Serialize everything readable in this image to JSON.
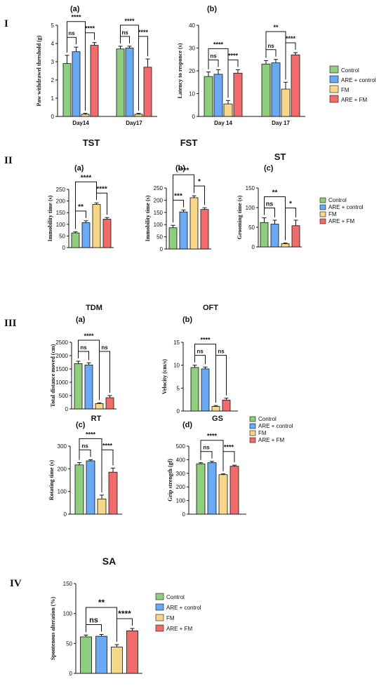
{
  "colors": {
    "Control": "#8fce7f",
    "ARE + control": "#6aaaf5",
    "FM": "#f7d88a",
    "ARE + FM": "#f26b6b"
  },
  "section_labels": [
    "I",
    "II",
    "III",
    "IV"
  ],
  "legends": {
    "entries": [
      "Control",
      "ARE + control",
      "FM",
      "ARE + FM"
    ]
  },
  "chart_data": [
    {
      "id": "I-a",
      "type": "bar",
      "panel": "(a)",
      "title": "",
      "ylabel": "Paw withdrawel threshold (g)",
      "ylim": [
        0,
        5
      ],
      "yticks": [
        0,
        1,
        2,
        3,
        4,
        5
      ],
      "categories": [
        "Day14",
        "Day17"
      ],
      "series": [
        {
          "name": "Control",
          "values": [
            2.9,
            3.7
          ],
          "err": [
            0.45,
            0.15
          ]
        },
        {
          "name": "ARE + control",
          "values": [
            3.55,
            3.75
          ],
          "err": [
            0.25,
            0.1
          ]
        },
        {
          "name": "FM",
          "values": [
            0.12,
            0.12
          ],
          "err": [
            0.05,
            0.05
          ]
        },
        {
          "name": "ARE + FM",
          "values": [
            3.9,
            2.7
          ],
          "err": [
            0.15,
            0.45
          ]
        }
      ],
      "sig": [
        {
          "g": 0,
          "a": 0,
          "b": 2,
          "label": "****",
          "lvl": 2
        },
        {
          "g": 0,
          "a": 0,
          "b": 1,
          "label": "ns",
          "lvl": 1
        },
        {
          "g": 0,
          "a": 2,
          "b": 3,
          "label": "****",
          "lvl": 1
        },
        {
          "g": 1,
          "a": 0,
          "b": 2,
          "label": "****",
          "lvl": 2
        },
        {
          "g": 1,
          "a": 0,
          "b": 1,
          "label": "ns",
          "lvl": 1
        },
        {
          "g": 1,
          "a": 2,
          "b": 3,
          "label": "****",
          "lvl": 1
        }
      ]
    },
    {
      "id": "I-b",
      "type": "bar",
      "panel": "(b)",
      "title": "",
      "ylabel": "Latency to responce (s)",
      "ylim": [
        0,
        40
      ],
      "yticks": [
        0,
        10,
        20,
        30,
        40
      ],
      "categories": [
        "Day 14",
        "Day 17"
      ],
      "series": [
        {
          "name": "Control",
          "values": [
            17.5,
            23
          ],
          "err": [
            2,
            1.5
          ]
        },
        {
          "name": "ARE + control",
          "values": [
            18.5,
            23.5
          ],
          "err": [
            2,
            1.5
          ]
        },
        {
          "name": "FM",
          "values": [
            5.5,
            12
          ],
          "err": [
            1.5,
            3
          ]
        },
        {
          "name": "ARE + FM",
          "values": [
            19,
            27
          ],
          "err": [
            1.5,
            1
          ]
        }
      ],
      "sig": [
        {
          "g": 0,
          "a": 0,
          "b": 2,
          "label": "****",
          "lvl": 2
        },
        {
          "g": 0,
          "a": 0,
          "b": 1,
          "label": "ns",
          "lvl": 1
        },
        {
          "g": 0,
          "a": 2,
          "b": 3,
          "label": "****",
          "lvl": 1
        },
        {
          "g": 1,
          "a": 0,
          "b": 2,
          "label": "**",
          "lvl": 2
        },
        {
          "g": 1,
          "a": 0,
          "b": 1,
          "label": "ns",
          "lvl": 1
        },
        {
          "g": 1,
          "a": 2,
          "b": 3,
          "label": "****",
          "lvl": 1
        }
      ]
    },
    {
      "id": "II-a",
      "type": "bar",
      "panel": "(a)",
      "title": "TST",
      "ylabel": "Immobility time (s)",
      "ylim": [
        0,
        250
      ],
      "yticks": [
        0,
        50,
        100,
        150,
        200,
        250
      ],
      "categories": [
        ""
      ],
      "series": [
        {
          "name": "Control",
          "values": [
            63
          ],
          "err": [
            5
          ]
        },
        {
          "name": "ARE + control",
          "values": [
            107
          ],
          "err": [
            8
          ]
        },
        {
          "name": "FM",
          "values": [
            185
          ],
          "err": [
            7
          ]
        },
        {
          "name": "ARE + FM",
          "values": [
            122
          ],
          "err": [
            7
          ]
        }
      ],
      "sig": [
        {
          "g": 0,
          "a": 0,
          "b": 2,
          "label": "****",
          "lvl": 2
        },
        {
          "g": 0,
          "a": 0,
          "b": 1,
          "label": "**",
          "lvl": 1
        },
        {
          "g": 0,
          "a": 2,
          "b": 3,
          "label": "****",
          "lvl": 1
        }
      ]
    },
    {
      "id": "II-b",
      "type": "bar",
      "panel": "(b)",
      "title": "FST",
      "ylabel": "Immobility time (s)",
      "ylim": [
        0,
        250
      ],
      "yticks": [
        0,
        50,
        100,
        150,
        200,
        250
      ],
      "categories": [
        ""
      ],
      "series": [
        {
          "name": "Control",
          "values": [
            87
          ],
          "err": [
            10
          ]
        },
        {
          "name": "ARE + control",
          "values": [
            152
          ],
          "err": [
            8
          ]
        },
        {
          "name": "FM",
          "values": [
            210
          ],
          "err": [
            8
          ]
        },
        {
          "name": "ARE + FM",
          "values": [
            162
          ],
          "err": [
            7
          ]
        }
      ],
      "sig": [
        {
          "g": 0,
          "a": 0,
          "b": 2,
          "label": "****",
          "lvl": 2
        },
        {
          "g": 0,
          "a": 0,
          "b": 1,
          "label": "***",
          "lvl": 1
        },
        {
          "g": 0,
          "a": 2,
          "b": 3,
          "label": "*",
          "lvl": 1
        }
      ]
    },
    {
      "id": "II-c",
      "type": "bar",
      "panel": "(c)",
      "title": "ST",
      "ylabel": "Grooming time (s)",
      "ylim": [
        0,
        150
      ],
      "yticks": [
        0,
        50,
        100,
        150
      ],
      "categories": [
        ""
      ],
      "series": [
        {
          "name": "Control",
          "values": [
            62
          ],
          "err": [
            12
          ]
        },
        {
          "name": "ARE + control",
          "values": [
            58
          ],
          "err": [
            10
          ]
        },
        {
          "name": "FM",
          "values": [
            8
          ],
          "err": [
            2
          ]
        },
        {
          "name": "ARE + FM",
          "values": [
            54
          ],
          "err": [
            14
          ]
        }
      ],
      "sig": [
        {
          "g": 0,
          "a": 0,
          "b": 2,
          "label": "**",
          "lvl": 2
        },
        {
          "g": 0,
          "a": 0,
          "b": 1,
          "label": "ns",
          "lvl": 1
        },
        {
          "g": 0,
          "a": 2,
          "b": 3,
          "label": "*",
          "lvl": 1
        }
      ]
    },
    {
      "id": "III-a",
      "type": "bar",
      "panel": "(a)",
      "title": "TDM",
      "ylabel": "Total distance moved (cm)",
      "ylim": [
        0,
        2500
      ],
      "yticks": [
        0,
        500,
        1000,
        1500,
        2000,
        2500
      ],
      "categories": [
        ""
      ],
      "series": [
        {
          "name": "Control",
          "values": [
            1700
          ],
          "err": [
            90
          ]
        },
        {
          "name": "ARE + control",
          "values": [
            1650
          ],
          "err": [
            80
          ]
        },
        {
          "name": "FM",
          "values": [
            200
          ],
          "err": [
            30
          ]
        },
        {
          "name": "ARE + FM",
          "values": [
            420
          ],
          "err": [
            80
          ]
        }
      ],
      "sig": [
        {
          "g": 0,
          "a": 0,
          "b": 2,
          "label": "****",
          "lvl": 2
        },
        {
          "g": 0,
          "a": 0,
          "b": 1,
          "label": "ns",
          "lvl": 1
        },
        {
          "g": 0,
          "a": 2,
          "b": 3,
          "label": "ns",
          "lvl": 1
        }
      ]
    },
    {
      "id": "III-b",
      "type": "bar",
      "panel": "(b)",
      "title": "OFT",
      "ylabel": "Velocity (cm/s)",
      "ylim": [
        0,
        15
      ],
      "yticks": [
        0,
        5,
        10,
        15
      ],
      "categories": [
        ""
      ],
      "series": [
        {
          "name": "Control",
          "values": [
            9.5
          ],
          "err": [
            0.5
          ]
        },
        {
          "name": "ARE + control",
          "values": [
            9.2
          ],
          "err": [
            0.4
          ]
        },
        {
          "name": "FM",
          "values": [
            1
          ],
          "err": [
            0.2
          ]
        },
        {
          "name": "ARE + FM",
          "values": [
            2.4
          ],
          "err": [
            0.4
          ]
        }
      ],
      "sig": [
        {
          "g": 0,
          "a": 0,
          "b": 2,
          "label": "****",
          "lvl": 2
        },
        {
          "g": 0,
          "a": 0,
          "b": 1,
          "label": "ns",
          "lvl": 1
        },
        {
          "g": 0,
          "a": 2,
          "b": 3,
          "label": "ns",
          "lvl": 1
        }
      ]
    },
    {
      "id": "III-c",
      "type": "bar",
      "panel": "(c)",
      "title": "RT",
      "ylabel": "Rotating time (s)",
      "ylim": [
        0,
        300
      ],
      "yticks": [
        0,
        100,
        200,
        300
      ],
      "categories": [
        ""
      ],
      "series": [
        {
          "name": "Control",
          "values": [
            217
          ],
          "err": [
            10
          ]
        },
        {
          "name": "ARE + control",
          "values": [
            235
          ],
          "err": [
            5
          ]
        },
        {
          "name": "FM",
          "values": [
            67
          ],
          "err": [
            17
          ]
        },
        {
          "name": "ARE + FM",
          "values": [
            185
          ],
          "err": [
            18
          ]
        }
      ],
      "sig": [
        {
          "g": 0,
          "a": 0,
          "b": 2,
          "label": "****",
          "lvl": 2
        },
        {
          "g": 0,
          "a": 0,
          "b": 1,
          "label": "ns",
          "lvl": 1
        },
        {
          "g": 0,
          "a": 2,
          "b": 3,
          "label": "****",
          "lvl": 1
        }
      ]
    },
    {
      "id": "III-d",
      "type": "bar",
      "panel": "(d)",
      "title": "GS",
      "ylabel": "Grip strength (gf)",
      "ylim": [
        0,
        500
      ],
      "yticks": [
        0,
        100,
        200,
        300,
        400,
        500
      ],
      "categories": [
        ""
      ],
      "series": [
        {
          "name": "Control",
          "values": [
            370
          ],
          "err": [
            8
          ]
        },
        {
          "name": "ARE + control",
          "values": [
            378
          ],
          "err": [
            10
          ]
        },
        {
          "name": "FM",
          "values": [
            290
          ],
          "err": [
            6
          ]
        },
        {
          "name": "ARE + FM",
          "values": [
            352
          ],
          "err": [
            8
          ]
        }
      ],
      "sig": [
        {
          "g": 0,
          "a": 0,
          "b": 2,
          "label": "****",
          "lvl": 2
        },
        {
          "g": 0,
          "a": 0,
          "b": 1,
          "label": "ns",
          "lvl": 1
        },
        {
          "g": 0,
          "a": 2,
          "b": 3,
          "label": "****",
          "lvl": 1
        }
      ]
    },
    {
      "id": "IV",
      "type": "bar",
      "panel": "",
      "title": "SA",
      "ylabel": "Spontenous alteration (%)",
      "ylim": [
        0,
        150
      ],
      "yticks": [
        0,
        50,
        100,
        150
      ],
      "categories": [
        ""
      ],
      "series": [
        {
          "name": "Control",
          "values": [
            61
          ],
          "err": [
            3
          ]
        },
        {
          "name": "ARE + control",
          "values": [
            62
          ],
          "err": [
            3
          ]
        },
        {
          "name": "FM",
          "values": [
            44
          ],
          "err": [
            4
          ]
        },
        {
          "name": "ARE + FM",
          "values": [
            71
          ],
          "err": [
            4
          ]
        }
      ],
      "sig": [
        {
          "g": 0,
          "a": 0,
          "b": 2,
          "label": "**",
          "lvl": 2
        },
        {
          "g": 0,
          "a": 0,
          "b": 1,
          "label": "ns",
          "lvl": 1
        },
        {
          "g": 0,
          "a": 2,
          "b": 3,
          "label": "****",
          "lvl": 1
        }
      ]
    }
  ]
}
